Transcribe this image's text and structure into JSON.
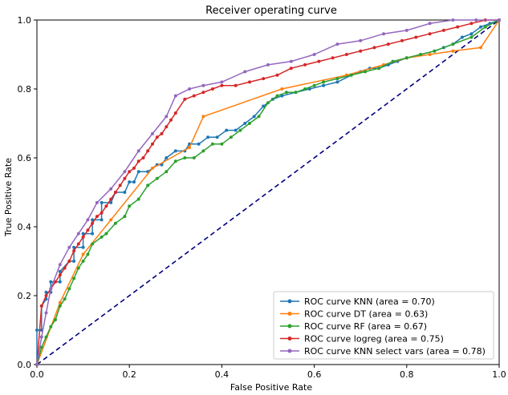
{
  "chart_data": {
    "type": "line",
    "title": "Receiver operating curve",
    "xlabel": "False Positive Rate",
    "ylabel": "True Positive Rate",
    "xlim": [
      0,
      1
    ],
    "ylim": [
      0,
      1
    ],
    "xticks": [
      "0.0",
      "0.2",
      "0.4",
      "0.6",
      "0.8",
      "1.0"
    ],
    "yticks": [
      "0.0",
      "0.2",
      "0.4",
      "0.6",
      "0.8",
      "1.0"
    ],
    "grid": false,
    "legend_position": "bottom-right",
    "diagonal": {
      "color": "#000080",
      "style": "dashed",
      "x": [
        0,
        1
      ],
      "y": [
        0,
        1
      ]
    },
    "series": [
      {
        "name": "ROC curve KNN (area = 0.70)",
        "color": "#1f77b4",
        "x": [
          0,
          0,
          0.01,
          0.01,
          0.02,
          0.02,
          0.03,
          0.03,
          0.05,
          0.05,
          0.07,
          0.08,
          0.08,
          0.1,
          0.1,
          0.12,
          0.12,
          0.14,
          0.14,
          0.16,
          0.17,
          0.19,
          0.2,
          0.21,
          0.22,
          0.24,
          0.26,
          0.27,
          0.28,
          0.3,
          0.32,
          0.33,
          0.35,
          0.37,
          0.39,
          0.41,
          0.43,
          0.45,
          0.47,
          0.49,
          0.51,
          0.53,
          0.56,
          0.59,
          0.62,
          0.65,
          0.68,
          0.7,
          0.72,
          0.74,
          0.76,
          0.78,
          0.8,
          0.83,
          0.86,
          0.88,
          0.9,
          0.92,
          0.94,
          0.96,
          0.98,
          1.0
        ],
        "y": [
          0,
          0.1,
          0.1,
          0.17,
          0.19,
          0.21,
          0.21,
          0.24,
          0.24,
          0.27,
          0.3,
          0.3,
          0.34,
          0.34,
          0.38,
          0.38,
          0.42,
          0.42,
          0.47,
          0.47,
          0.5,
          0.5,
          0.53,
          0.53,
          0.56,
          0.56,
          0.58,
          0.58,
          0.6,
          0.62,
          0.62,
          0.64,
          0.64,
          0.66,
          0.66,
          0.68,
          0.68,
          0.7,
          0.72,
          0.75,
          0.77,
          0.78,
          0.79,
          0.8,
          0.81,
          0.82,
          0.84,
          0.85,
          0.86,
          0.86,
          0.87,
          0.88,
          0.89,
          0.9,
          0.91,
          0.92,
          0.93,
          0.95,
          0.96,
          0.98,
          0.99,
          1.0
        ]
      },
      {
        "name": "ROC curve DT (area = 0.63)",
        "color": "#ff7f0e",
        "x": [
          0,
          0.05,
          0.1,
          0.16,
          0.25,
          0.33,
          0.36,
          0.53,
          0.67,
          0.75,
          0.8,
          0.85,
          0.9,
          0.96,
          1.0
        ],
        "y": [
          0,
          0.18,
          0.32,
          0.42,
          0.57,
          0.63,
          0.72,
          0.8,
          0.84,
          0.87,
          0.89,
          0.9,
          0.91,
          0.92,
          1.0
        ]
      },
      {
        "name": "ROC curve RF (area = 0.67)",
        "color": "#2ca02c",
        "x": [
          0,
          0.01,
          0.02,
          0.03,
          0.04,
          0.05,
          0.06,
          0.07,
          0.08,
          0.09,
          0.1,
          0.11,
          0.12,
          0.14,
          0.15,
          0.17,
          0.19,
          0.2,
          0.22,
          0.24,
          0.26,
          0.28,
          0.3,
          0.32,
          0.34,
          0.36,
          0.38,
          0.4,
          0.42,
          0.44,
          0.46,
          0.48,
          0.5,
          0.52,
          0.54,
          0.56,
          0.58,
          0.6,
          0.62,
          0.65,
          0.68,
          0.71,
          0.74,
          0.77,
          0.8,
          0.83,
          0.86,
          0.9,
          0.94,
          0.97,
          1.0
        ],
        "y": [
          0,
          0.05,
          0.08,
          0.11,
          0.13,
          0.17,
          0.19,
          0.22,
          0.25,
          0.28,
          0.3,
          0.32,
          0.35,
          0.37,
          0.38,
          0.41,
          0.43,
          0.46,
          0.48,
          0.52,
          0.54,
          0.56,
          0.59,
          0.6,
          0.6,
          0.62,
          0.64,
          0.64,
          0.66,
          0.68,
          0.7,
          0.72,
          0.76,
          0.78,
          0.79,
          0.79,
          0.8,
          0.81,
          0.82,
          0.83,
          0.84,
          0.85,
          0.86,
          0.88,
          0.89,
          0.9,
          0.91,
          0.93,
          0.95,
          0.98,
          1.0
        ]
      },
      {
        "name": "ROC curve logreg (area = 0.75)",
        "color": "#d62728",
        "x": [
          0,
          0.01,
          0.02,
          0.03,
          0.04,
          0.05,
          0.06,
          0.07,
          0.08,
          0.09,
          0.1,
          0.11,
          0.12,
          0.13,
          0.14,
          0.15,
          0.16,
          0.17,
          0.18,
          0.19,
          0.2,
          0.21,
          0.22,
          0.23,
          0.24,
          0.25,
          0.26,
          0.27,
          0.28,
          0.29,
          0.3,
          0.32,
          0.34,
          0.36,
          0.38,
          0.4,
          0.43,
          0.46,
          0.49,
          0.52,
          0.55,
          0.58,
          0.61,
          0.64,
          0.67,
          0.7,
          0.73,
          0.76,
          0.79,
          0.82,
          0.85,
          0.88,
          0.91,
          0.94,
          0.97,
          1.0
        ],
        "y": [
          0,
          0.17,
          0.2,
          0.22,
          0.24,
          0.26,
          0.28,
          0.3,
          0.33,
          0.35,
          0.37,
          0.39,
          0.41,
          0.43,
          0.44,
          0.46,
          0.48,
          0.5,
          0.52,
          0.54,
          0.56,
          0.57,
          0.59,
          0.6,
          0.62,
          0.64,
          0.66,
          0.67,
          0.69,
          0.71,
          0.73,
          0.77,
          0.78,
          0.79,
          0.8,
          0.81,
          0.81,
          0.82,
          0.83,
          0.84,
          0.86,
          0.87,
          0.88,
          0.89,
          0.9,
          0.91,
          0.92,
          0.93,
          0.94,
          0.95,
          0.96,
          0.97,
          0.98,
          0.99,
          1.0,
          1.0
        ]
      },
      {
        "name": "ROC curve KNN select vars (area = 0.78)",
        "color": "#9467bd",
        "x": [
          0,
          0.01,
          0.02,
          0.03,
          0.05,
          0.07,
          0.09,
          0.11,
          0.13,
          0.16,
          0.19,
          0.22,
          0.25,
          0.28,
          0.3,
          0.33,
          0.36,
          0.4,
          0.45,
          0.5,
          0.55,
          0.6,
          0.65,
          0.7,
          0.75,
          0.8,
          0.85,
          0.9,
          0.95,
          1.0
        ],
        "y": [
          0,
          0.08,
          0.15,
          0.22,
          0.29,
          0.34,
          0.38,
          0.42,
          0.47,
          0.51,
          0.56,
          0.62,
          0.67,
          0.72,
          0.78,
          0.8,
          0.81,
          0.82,
          0.85,
          0.87,
          0.88,
          0.9,
          0.93,
          0.94,
          0.96,
          0.97,
          0.99,
          1.0,
          1.0,
          1.0
        ]
      }
    ]
  }
}
